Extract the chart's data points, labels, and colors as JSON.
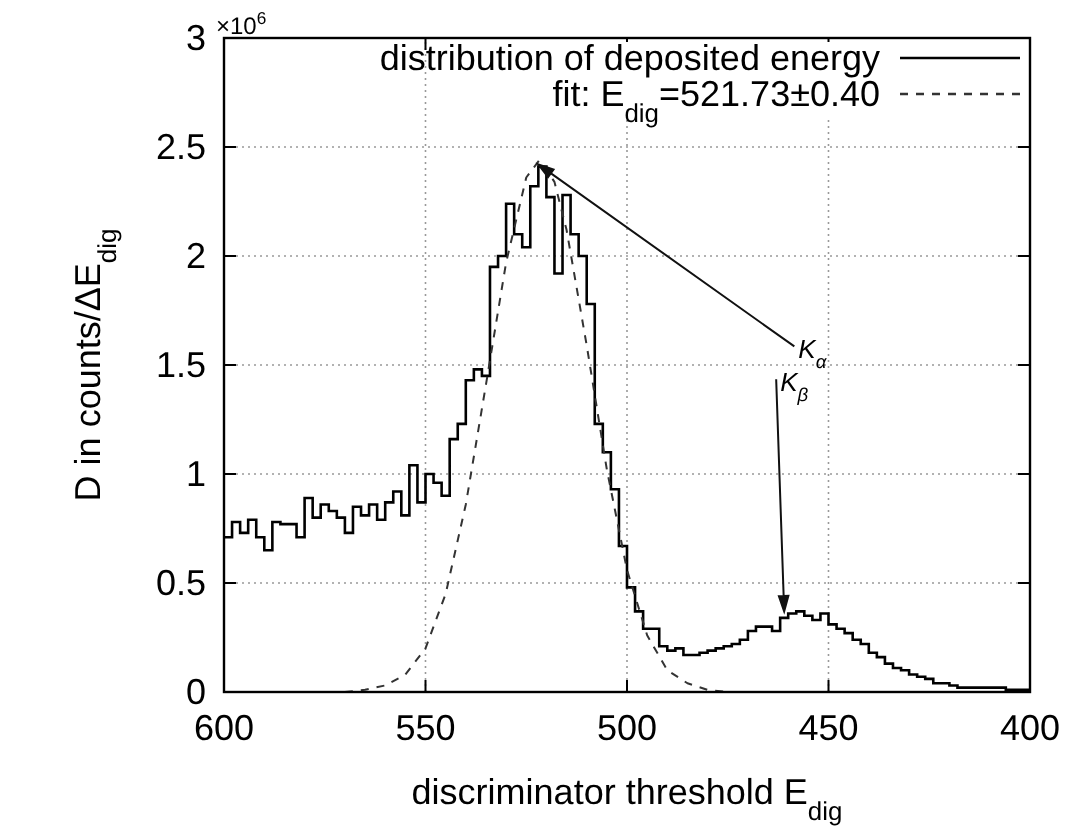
{
  "chart_data": {
    "type": "histogram",
    "xlabel": "discriminator threshold E$_{dig}$",
    "ylabel": "D in counts/ΔE$_{dig}$",
    "xlim": [
      600,
      400
    ],
    "xticks": [
      600,
      550,
      500,
      450,
      400
    ],
    "ylim": [
      0,
      3
    ],
    "yticks": [
      0,
      0.5,
      1,
      1.5,
      2,
      2.5,
      3
    ],
    "grid": true,
    "legend": "top right",
    "bins": [
      600,
      598,
      596,
      594,
      592,
      590,
      588,
      586,
      584,
      582,
      580,
      578,
      576,
      574,
      572,
      570,
      568,
      566,
      564,
      562,
      560,
      558,
      556,
      554,
      552,
      550,
      548,
      546,
      544,
      542,
      540,
      538,
      536,
      534,
      532,
      530,
      528,
      526,
      524,
      522,
      520,
      518,
      516,
      514,
      512,
      510,
      508,
      506,
      504,
      502,
      500,
      498,
      496,
      494,
      492,
      490,
      488,
      486,
      484,
      482,
      480,
      478,
      476,
      474,
      472,
      470,
      468,
      466,
      464,
      462,
      460,
      458,
      456,
      454,
      452,
      450,
      448,
      446,
      444,
      442,
      440,
      438,
      436,
      434,
      432,
      430,
      428,
      426,
      424,
      422,
      420,
      418,
      416,
      414,
      412,
      410,
      408,
      406,
      404,
      402,
      400
    ],
    "series": [
      {
        "name": "distribution of deposited energy",
        "color": "#000000",
        "values": [
          0.71,
          0.78,
          0.73,
          0.79,
          0.71,
          0.65,
          0.78,
          0.77,
          0.77,
          0.71,
          0.89,
          0.8,
          0.86,
          0.83,
          0.8,
          0.73,
          0.85,
          0.81,
          0.86,
          0.79,
          0.87,
          0.92,
          0.81,
          1.04,
          0.87,
          1.0,
          0.96,
          0.9,
          1.16,
          1.23,
          1.43,
          1.48,
          1.45,
          1.95,
          2.0,
          2.24,
          2.1,
          2.04,
          2.32,
          2.41,
          2.27,
          1.92,
          2.28,
          2.1,
          2.0,
          1.78,
          1.23,
          1.1,
          0.93,
          0.67,
          0.48,
          0.37,
          0.29,
          0.29,
          0.21,
          0.19,
          0.2,
          0.17,
          0.17,
          0.18,
          0.19,
          0.2,
          0.21,
          0.22,
          0.24,
          0.28,
          0.3,
          0.3,
          0.28,
          0.34,
          0.36,
          0.37,
          0.35,
          0.33,
          0.36,
          0.31,
          0.29,
          0.27,
          0.24,
          0.22,
          0.18,
          0.16,
          0.13,
          0.11,
          0.1,
          0.08,
          0.07,
          0.06,
          0.04,
          0.04,
          0.03,
          0.02,
          0.02,
          0.02,
          0.02,
          0.02,
          0.02,
          0.01,
          0.01,
          0.01
        ]
      },
      {
        "name": "fit: E$_{dig}$=521.73±0.40",
        "type": "line",
        "color": "#333333",
        "line_style": "dashed",
        "marker": "none",
        "x": [
          570,
          565,
          560,
          555,
          550,
          545,
          540,
          535,
          530,
          525,
          521.73,
          518,
          515,
          510,
          505,
          500,
          495,
          490,
          485,
          480,
          475
        ],
        "values": [
          0,
          0.01,
          0.03,
          0.08,
          0.2,
          0.45,
          0.86,
          1.41,
          1.97,
          2.36,
          2.44,
          2.34,
          2.12,
          1.59,
          1.02,
          0.56,
          0.26,
          0.1,
          0.04,
          0.01,
          0
        ]
      }
    ],
    "annotations": [
      "×10$^{6}$",
      {
        "text": "K$_{α}$",
        "x": 522,
        "y": 2.42
      },
      {
        "text": "K$_{β}$",
        "x": 461,
        "y": 0.37
      }
    ]
  }
}
